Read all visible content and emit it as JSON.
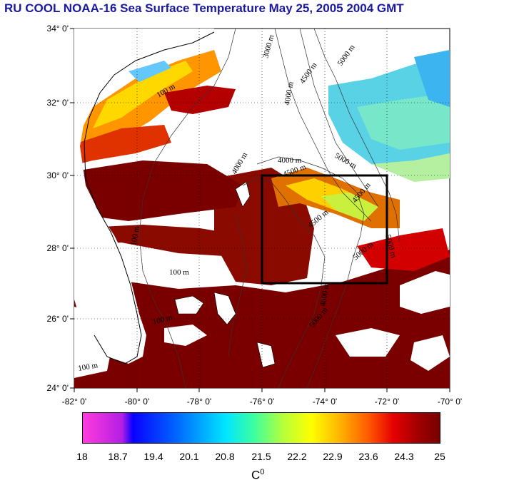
{
  "title": "RU COOL  NOAA-16 Sea Surface Temperature May 25, 2005 2004 GMT",
  "axes": {
    "lat_labels": [
      "34° 0'",
      "32° 0'",
      "30° 0'",
      "28° 0'",
      "26° 0'",
      "24° 0'"
    ],
    "lon_labels": [
      "-82° 0'",
      "-80° 0'",
      "-78° 0'",
      "-76° 0'",
      "-74° 0'",
      "-72° 0'",
      "-70° 0'"
    ]
  },
  "contours": [
    "100 m",
    "100 m",
    "100 m",
    "100 m",
    "100 m",
    "3000 m",
    "4000 m",
    "4500 m",
    "5000 m",
    "4000 m",
    "4500 m",
    "5000 m",
    "4000 m",
    "4500 m",
    "5000 m",
    "4500 m",
    "5000 m",
    "5000 m",
    "4000 m"
  ],
  "colorbar": {
    "labels": [
      "18",
      "18.7",
      "19.4",
      "20.1",
      "20.8",
      "21.5",
      "22.2",
      "22.9",
      "23.6",
      "24.3",
      "25"
    ],
    "unit": "C",
    "unit_sup": "0"
  },
  "colors": {
    "title": "#1a1aa0",
    "box": "#000000",
    "warm": "#7a0000"
  }
}
